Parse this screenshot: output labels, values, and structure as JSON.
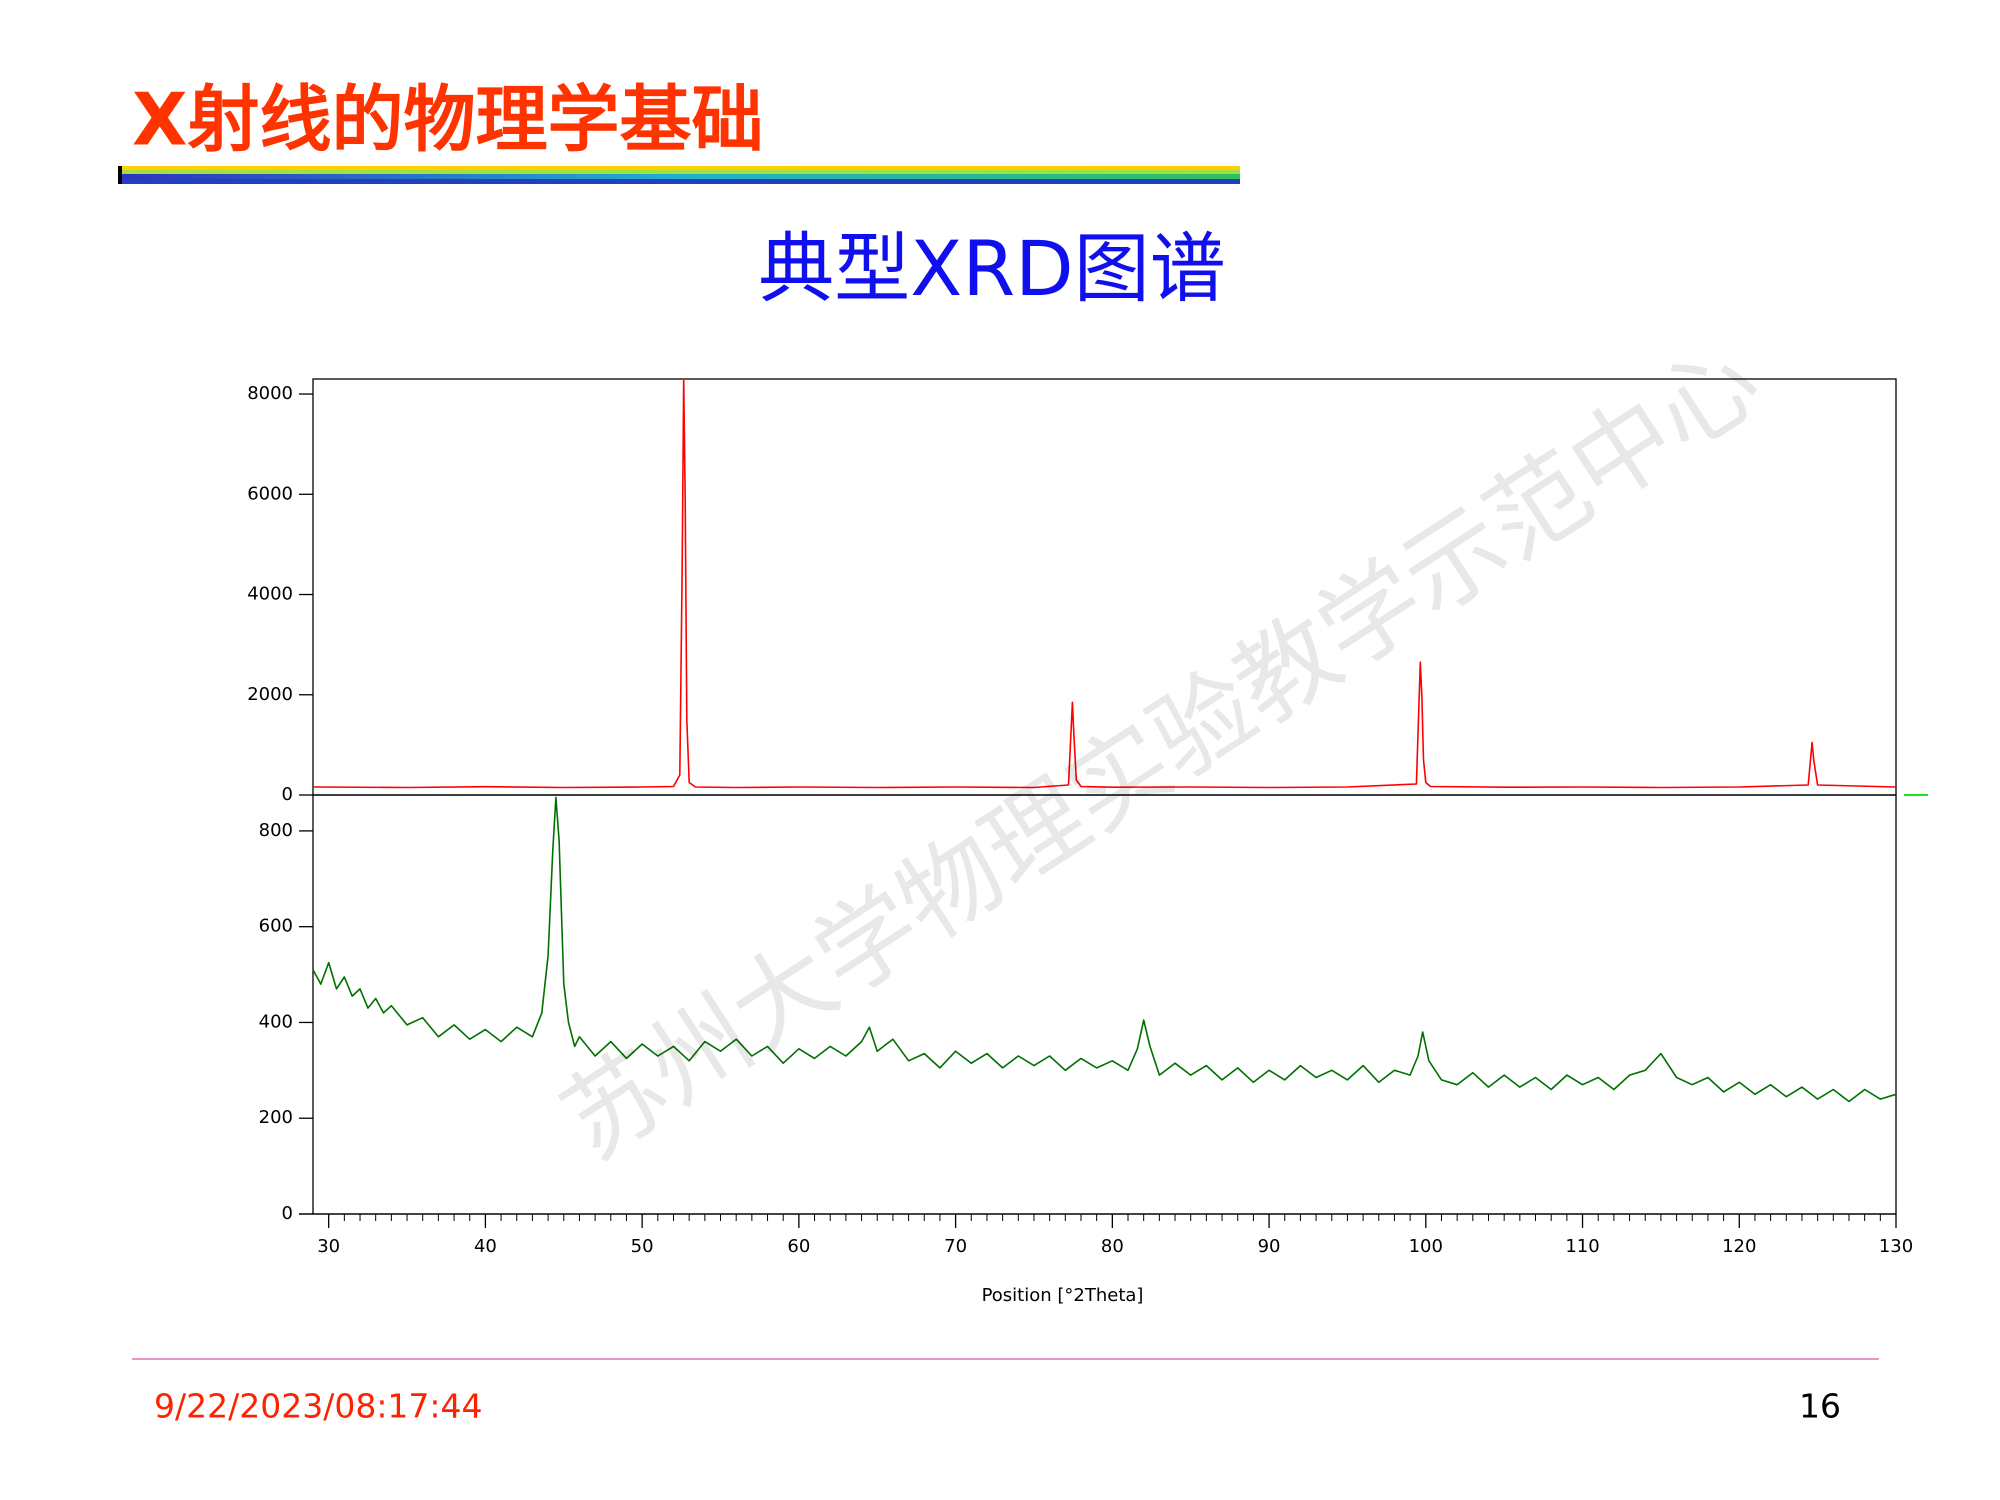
{
  "header": {
    "title": "X射线的物理学基础",
    "subtitle": "典型XRD图谱"
  },
  "watermark": "苏州大学物理实验教学示范中心",
  "chart_data": [
    {
      "type": "line",
      "color": "#ff0000",
      "xlim": [
        29,
        130
      ],
      "ylim": [
        0,
        8300
      ],
      "yticks": [
        0,
        2000,
        4000,
        6000,
        8000
      ],
      "x": [
        29,
        35,
        40,
        45,
        50,
        52.0,
        52.4,
        52.55,
        52.65,
        52.75,
        52.85,
        53.0,
        53.4,
        56,
        60,
        65,
        70,
        75,
        77.2,
        77.45,
        77.55,
        77.7,
        78,
        80,
        85,
        90,
        95,
        99.4,
        99.65,
        99.75,
        99.85,
        100.0,
        100.3,
        105,
        110,
        115,
        120,
        124.4,
        124.65,
        124.75,
        125.0,
        130
      ],
      "values": [
        160,
        150,
        165,
        150,
        160,
        170,
        400,
        4400,
        8300,
        5900,
        1500,
        250,
        160,
        150,
        160,
        150,
        160,
        150,
        200,
        1850,
        1200,
        300,
        170,
        155,
        160,
        150,
        160,
        220,
        2650,
        1950,
        700,
        250,
        170,
        155,
        160,
        150,
        160,
        200,
        1050,
        700,
        200,
        160
      ]
    },
    {
      "type": "line",
      "color": "#007000",
      "xlim": [
        29,
        130
      ],
      "ylim": [
        0,
        875
      ],
      "yticks": [
        0,
        200,
        400,
        600,
        800
      ],
      "xticks": [
        30,
        40,
        50,
        60,
        70,
        80,
        90,
        100,
        110,
        120,
        130
      ],
      "xlabel": "Position [°2Theta]",
      "x": [
        29,
        29.5,
        30,
        30.5,
        31,
        31.5,
        32,
        32.5,
        33,
        33.5,
        34,
        35,
        36,
        37,
        38,
        39,
        40,
        41,
        42,
        43,
        43.6,
        44,
        44.3,
        44.5,
        44.7,
        45,
        45.3,
        45.7,
        46,
        47,
        48,
        49,
        50,
        51,
        52,
        53,
        54,
        55,
        56,
        57,
        58,
        59,
        60,
        61,
        62,
        63,
        64,
        64.5,
        65,
        66,
        67,
        68,
        69,
        70,
        71,
        72,
        73,
        74,
        75,
        76,
        77,
        78,
        79,
        80,
        81,
        81.6,
        82,
        82.4,
        83,
        84,
        85,
        86,
        87,
        88,
        89,
        90,
        91,
        92,
        93,
        94,
        95,
        96,
        97,
        98,
        99,
        99.5,
        99.8,
        100.2,
        101,
        102,
        103,
        104,
        105,
        106,
        107,
        108,
        109,
        110,
        111,
        112,
        113,
        114,
        115,
        116,
        117,
        118,
        119,
        120,
        121,
        122,
        123,
        124,
        125,
        126,
        127,
        128,
        129,
        130
      ],
      "values": [
        510,
        480,
        525,
        470,
        495,
        455,
        470,
        430,
        450,
        420,
        435,
        395,
        410,
        370,
        395,
        365,
        385,
        360,
        390,
        370,
        420,
        540,
        760,
        870,
        780,
        480,
        400,
        350,
        370,
        330,
        360,
        325,
        355,
        330,
        350,
        320,
        360,
        340,
        365,
        330,
        350,
        315,
        345,
        325,
        350,
        330,
        360,
        390,
        340,
        365,
        320,
        335,
        305,
        340,
        315,
        335,
        305,
        330,
        310,
        330,
        300,
        325,
        305,
        320,
        300,
        345,
        405,
        350,
        290,
        315,
        290,
        310,
        280,
        305,
        275,
        300,
        280,
        310,
        285,
        300,
        280,
        310,
        275,
        300,
        290,
        330,
        380,
        320,
        280,
        270,
        295,
        265,
        290,
        265,
        285,
        260,
        290,
        270,
        285,
        260,
        290,
        300,
        335,
        285,
        270,
        285,
        255,
        275,
        250,
        270,
        245,
        265,
        240,
        260,
        235,
        260,
        240,
        250
      ]
    }
  ],
  "footer": {
    "date": "9/22/2023/08:17:44",
    "page": "16"
  }
}
